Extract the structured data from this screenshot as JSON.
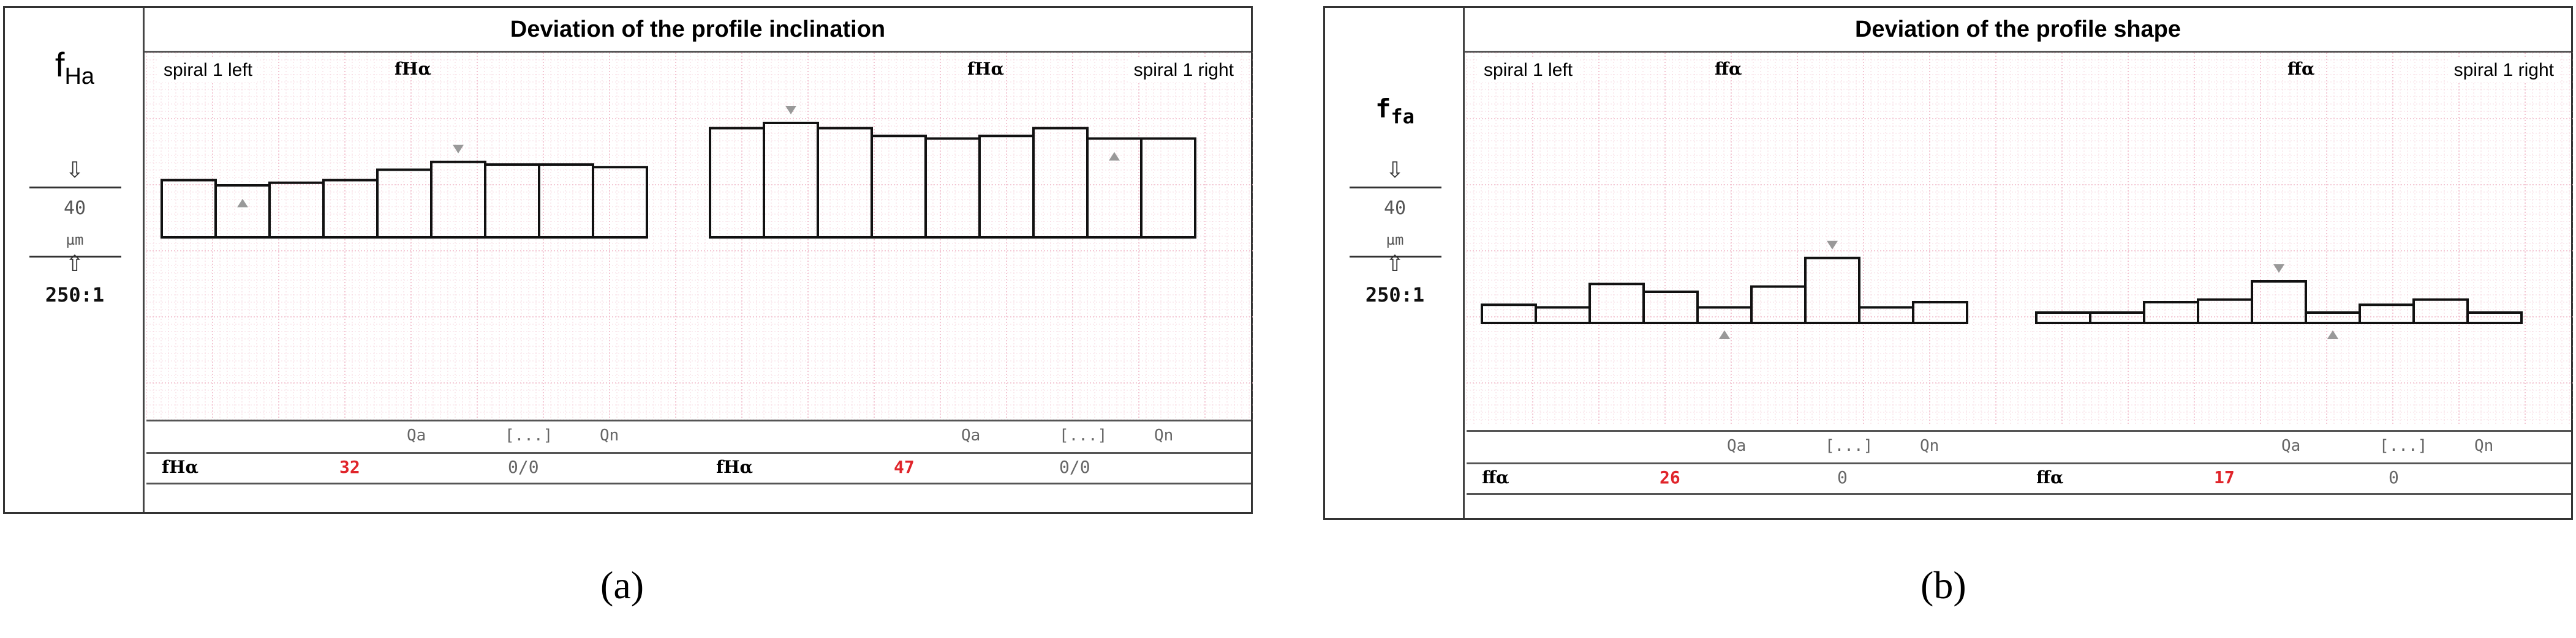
{
  "panels": [
    {
      "id": "a",
      "title": "Deviation of the profile inclination",
      "ylabel": "fHa",
      "scale": {
        "value": "40",
        "unit": "µm",
        "ratio": "250:1"
      },
      "left_label": "spiral 1 left",
      "right_label": "spiral 1 right",
      "symbol": "fHα",
      "q_header": {
        "qa": "Qa",
        "dots": "[...]",
        "qn": "Qn"
      },
      "values": {
        "left_sym": "fHα",
        "left_value": "32",
        "left_ratio": "0/0",
        "right_sym": "fHα",
        "right_value": "47",
        "right_ratio": "0/0"
      },
      "caption": "(a)"
    },
    {
      "id": "b",
      "title": "Deviation of the profile shape",
      "ylabel": "ffa",
      "scale": {
        "value": "40",
        "unit": "µm",
        "ratio": "250:1"
      },
      "left_label": "spiral 1 left",
      "right_label": "spiral 1 right",
      "symbol": "ffα",
      "q_header": {
        "qa": "Qa",
        "dots": "[...]",
        "qn": "Qn"
      },
      "values": {
        "left_sym": "ffα",
        "left_value": "26",
        "left_ratio": "0",
        "right_sym": "ffα",
        "right_value": "17",
        "right_ratio": "0"
      },
      "caption": "(b)"
    }
  ],
  "chart_data": [
    {
      "type": "bar",
      "title": "Deviation of the profile inclination",
      "ylabel": "fHa",
      "unit": "µm",
      "scale_ref": 40,
      "series": [
        {
          "name": "spiral 1 left",
          "values": [
            11,
            10,
            10.5,
            11,
            13,
            14.5,
            14,
            14,
            13.5
          ],
          "max_index": 5,
          "min_index": 1
        },
        {
          "name": "spiral 1 right",
          "values": [
            21,
            22,
            21,
            19.5,
            19,
            19.5,
            21,
            19,
            19
          ],
          "max_index": 1,
          "min_index": 7
        }
      ],
      "colors": {
        "bar": "#111111",
        "baseline": "#3b44a8",
        "grid": "#f0b8c8",
        "marker": "#999999"
      }
    },
    {
      "type": "bar",
      "title": "Deviation of the profile shape",
      "ylabel": "ffa",
      "unit": "µm",
      "scale_ref": 40,
      "series": [
        {
          "name": "spiral 1 left",
          "values": [
            3.5,
            3,
            7.5,
            6,
            3,
            7,
            12.5,
            3,
            4
          ],
          "max_index": 6,
          "min_index": 4
        },
        {
          "name": "spiral 1 right",
          "values": [
            2,
            2,
            4,
            4.5,
            8,
            2,
            3.5,
            4.5,
            2
          ],
          "max_index": 4,
          "min_index": 5
        }
      ],
      "colors": {
        "bar": "#111111",
        "baseline": "#3b44a8",
        "grid": "#f0b8c8",
        "marker": "#999999"
      }
    }
  ]
}
